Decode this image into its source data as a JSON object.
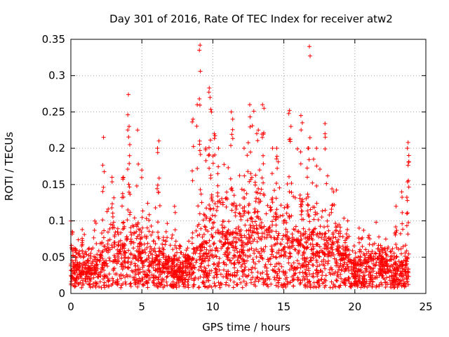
{
  "chart_data": {
    "type": "scatter",
    "title": "Day 301 of 2016, Rate Of TEC Index for receiver atw2",
    "xlabel": "GPS time / hours",
    "ylabel": "ROTI / TECUs",
    "xlim": [
      0,
      25
    ],
    "ylim": [
      0,
      0.35
    ],
    "x_ticks": [
      0,
      5,
      10,
      15,
      20,
      25
    ],
    "y_ticks": [
      0,
      0.05,
      0.1,
      0.15,
      0.2,
      0.25,
      0.3,
      0.35
    ],
    "x_tick_labels": [
      "0",
      "5",
      "10",
      "15",
      "20",
      "25"
    ],
    "y_tick_labels": [
      "0",
      "0.05",
      "0.1",
      "0.15",
      "0.2",
      "0.25",
      "0.3",
      "0.35"
    ],
    "grid": true,
    "marker": "+",
    "color": "#ff0000",
    "series": [
      {
        "name": "ROTI",
        "x_range": [
          0,
          23.8
        ],
        "note": "dense point cloud, approximated by baseline + peaks",
        "profile": [
          [
            0.0,
            0.035
          ],
          [
            0.5,
            0.03
          ],
          [
            1.0,
            0.03
          ],
          [
            2.0,
            0.04
          ],
          [
            3.0,
            0.05
          ],
          [
            4.0,
            0.06
          ],
          [
            5.0,
            0.05
          ],
          [
            6.0,
            0.045
          ],
          [
            7.0,
            0.035
          ],
          [
            8.0,
            0.03
          ],
          [
            9.0,
            0.05
          ],
          [
            10.0,
            0.07
          ],
          [
            11.0,
            0.07
          ],
          [
            12.0,
            0.06
          ],
          [
            13.0,
            0.09
          ],
          [
            14.0,
            0.075
          ],
          [
            15.0,
            0.06
          ],
          [
            16.0,
            0.07
          ],
          [
            17.0,
            0.065
          ],
          [
            18.0,
            0.06
          ],
          [
            19.0,
            0.045
          ],
          [
            20.0,
            0.03
          ],
          [
            21.0,
            0.035
          ],
          [
            22.0,
            0.035
          ],
          [
            23.0,
            0.03
          ],
          [
            23.8,
            0.035
          ]
        ],
        "peaks": [
          [
            0.1,
            0.085
          ],
          [
            0.8,
            0.088
          ],
          [
            2.3,
            0.215
          ],
          [
            2.9,
            0.16
          ],
          [
            3.7,
            0.16
          ],
          [
            4.05,
            0.274
          ],
          [
            4.1,
            0.23
          ],
          [
            4.15,
            0.205
          ],
          [
            4.7,
            0.225
          ],
          [
            5.0,
            0.17
          ],
          [
            6.2,
            0.21
          ],
          [
            6.1,
            0.2
          ],
          [
            7.3,
            0.12
          ],
          [
            8.6,
            0.24
          ],
          [
            8.9,
            0.26
          ],
          [
            9.1,
            0.342
          ],
          [
            9.05,
            0.335
          ],
          [
            9.5,
            0.2
          ],
          [
            9.75,
            0.283
          ],
          [
            9.8,
            0.27
          ],
          [
            9.9,
            0.25
          ],
          [
            10.1,
            0.22
          ],
          [
            10.4,
            0.2
          ],
          [
            11.3,
            0.25
          ],
          [
            11.4,
            0.24
          ],
          [
            12.6,
            0.26
          ],
          [
            12.2,
            0.2
          ],
          [
            13.2,
            0.225
          ],
          [
            13.5,
            0.26
          ],
          [
            13.6,
            0.255
          ],
          [
            14.2,
            0.2
          ],
          [
            14.5,
            0.2
          ],
          [
            15.4,
            0.252
          ],
          [
            15.5,
            0.23
          ],
          [
            16.2,
            0.245
          ],
          [
            16.3,
            0.235
          ],
          [
            16.7,
            0.2
          ],
          [
            16.8,
            0.34
          ],
          [
            17.3,
            0.2
          ],
          [
            17.9,
            0.234
          ],
          [
            18.5,
            0.14
          ],
          [
            19.5,
            0.1
          ],
          [
            20.3,
            0.09
          ],
          [
            21.0,
            0.08
          ],
          [
            22.9,
            0.12
          ],
          [
            23.3,
            0.14
          ],
          [
            23.7,
            0.2
          ],
          [
            23.75,
            0.208
          ],
          [
            23.8,
            0.19
          ]
        ]
      }
    ]
  }
}
